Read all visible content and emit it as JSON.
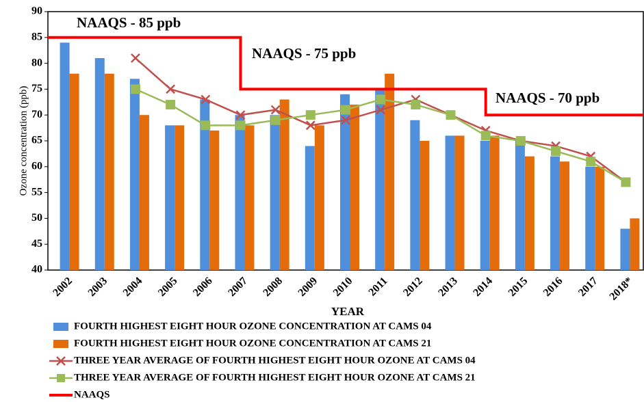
{
  "chart_data": {
    "type": "combo",
    "x_label": "YEAR",
    "y_label": "Ozone concentration (ppb)",
    "categories": [
      "2002",
      "2003",
      "2004",
      "2005",
      "2006",
      "2007",
      "2008",
      "2009",
      "2010",
      "2011",
      "2012",
      "2013",
      "2014",
      "2015",
      "2016",
      "2017",
      "2018*"
    ],
    "ylim": [
      40,
      90
    ],
    "yticks": [
      40,
      45,
      50,
      55,
      60,
      65,
      70,
      75,
      80,
      85,
      90
    ],
    "annotations": [
      "NAAQS - 85 ppb",
      "NAAQS - 75 ppb",
      "NAAQS - 70 ppb"
    ],
    "series": [
      {
        "name": "FOURTH HIGHEST EIGHT HOUR OZONE CONCENTRATION AT CAMS 04",
        "type": "bar",
        "color": "#4f8fdc",
        "values": [
          84,
          81,
          77,
          68,
          73,
          70,
          70,
          64,
          74,
          75,
          69,
          66,
          65,
          65,
          62,
          60,
          48
        ]
      },
      {
        "name": "FOURTH HIGHEST EIGHT HOUR OZONE CONCENTRATION AT CAMS 21",
        "type": "bar",
        "color": "#e46c0a",
        "values": [
          78,
          78,
          70,
          68,
          67,
          68,
          73,
          68,
          72,
          78,
          65,
          66,
          66,
          62,
          61,
          60,
          50
        ]
      },
      {
        "name": "THREE YEAR AVERAGE OF FOURTH HIGHEST EIGHT HOUR OZONE AT CAMS 04",
        "type": "line",
        "marker": "x",
        "color": "#c0504d",
        "values": [
          null,
          null,
          81,
          75,
          73,
          70,
          71,
          68,
          69,
          71,
          73,
          70,
          67,
          65,
          64,
          62,
          57
        ]
      },
      {
        "name": "THREE YEAR AVERAGE OF FOURTH HIGHEST EIGHT HOUR OZONE AT CAMS 21",
        "type": "line",
        "marker": "square",
        "color": "#9bbb59",
        "values": [
          null,
          null,
          75,
          72,
          68,
          68,
          69,
          70,
          71,
          73,
          72,
          70,
          66,
          65,
          63,
          61,
          57
        ]
      },
      {
        "name": "NAAQS",
        "type": "step",
        "color": "#ff0000",
        "values": [
          85,
          85,
          85,
          85,
          85,
          75,
          75,
          75,
          75,
          75,
          75,
          75,
          70,
          70,
          70,
          70,
          70
        ]
      }
    ]
  }
}
